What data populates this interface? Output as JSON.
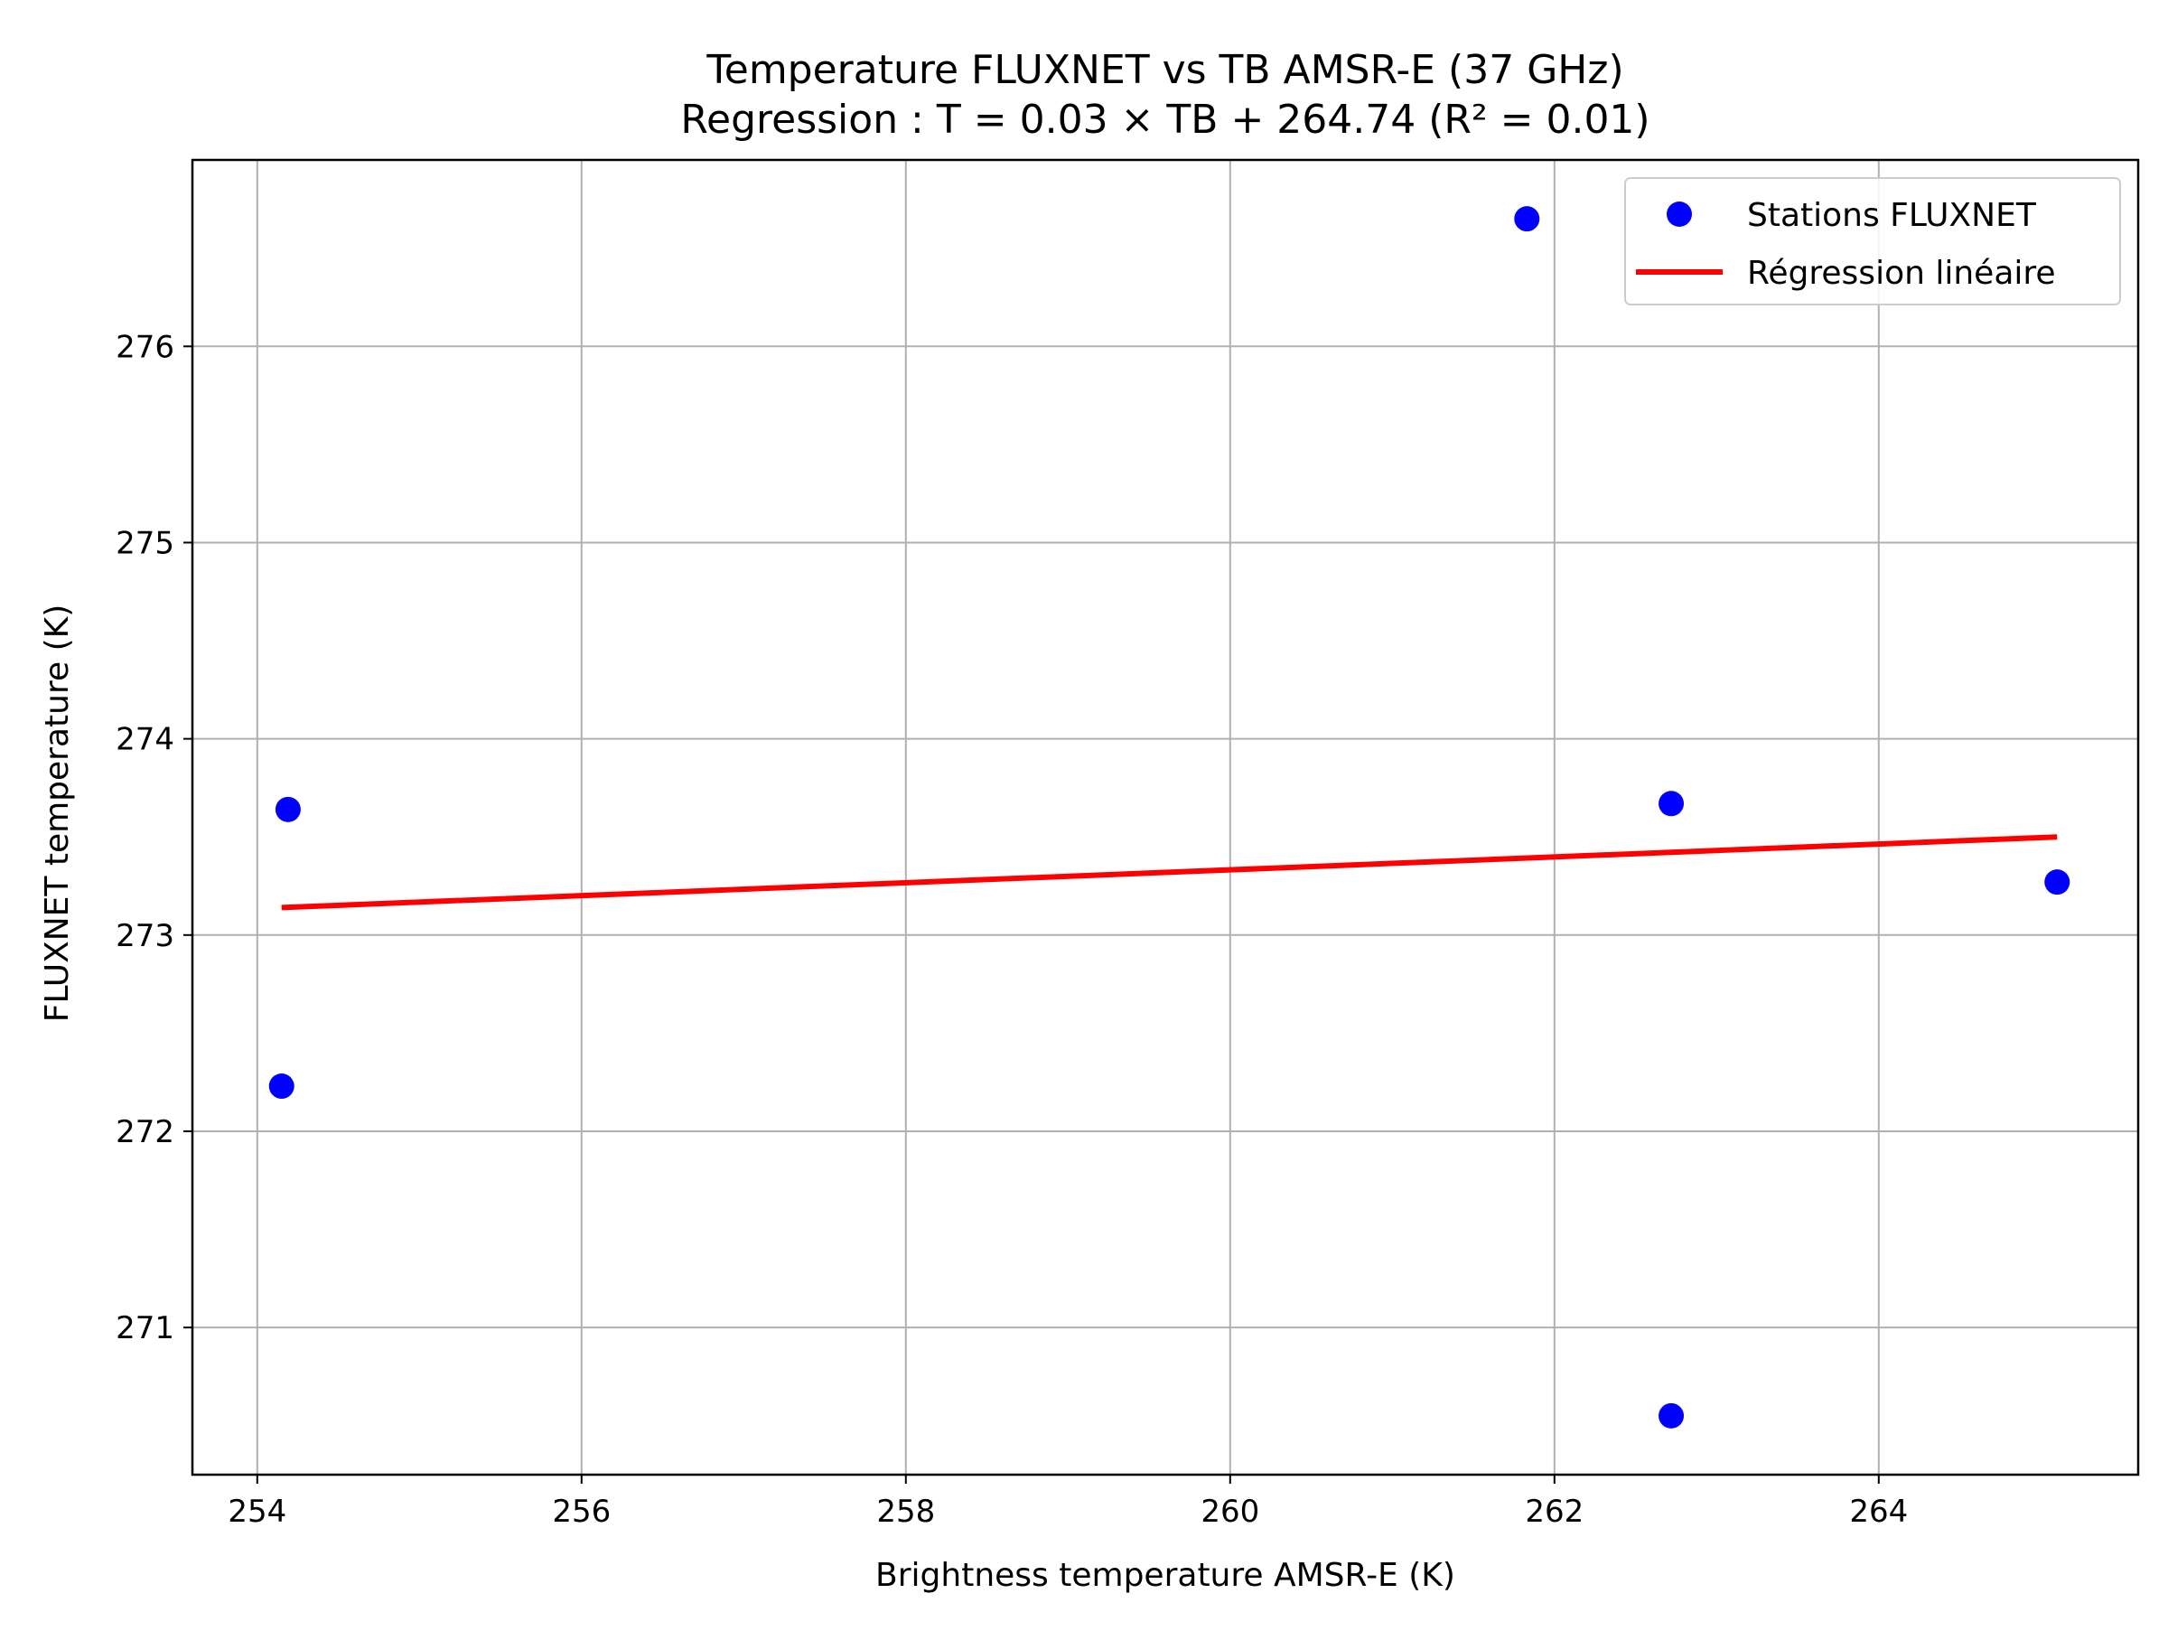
{
  "chart_data": {
    "type": "scatter",
    "title": "Temperature FLUXNET vs TB AMSR-E (37 GHz)",
    "subtitle": "Regression : T = 0.03 × TB + 264.74 (R² = 0.01)",
    "xlabel": "Brightness temperature AMSR-E (K)",
    "ylabel": "FLUXNET temperature (K)",
    "xlim": [
      253.6,
      265.6
    ],
    "ylim": [
      270.25,
      276.95
    ],
    "xticks": [
      254,
      256,
      258,
      260,
      262,
      264
    ],
    "yticks": [
      271,
      272,
      273,
      274,
      275,
      276
    ],
    "grid": true,
    "legend_position": "top-right",
    "series": [
      {
        "name": "Stations FLUXNET",
        "kind": "scatter",
        "color": "#0000ff",
        "points": [
          {
            "x": 254.19,
            "y": 273.64
          },
          {
            "x": 254.15,
            "y": 272.23
          },
          {
            "x": 261.83,
            "y": 276.65
          },
          {
            "x": 262.72,
            "y": 273.67
          },
          {
            "x": 262.72,
            "y": 270.55
          },
          {
            "x": 265.1,
            "y": 273.27
          }
        ]
      },
      {
        "name": "Régression linéaire",
        "kind": "line",
        "color": "#ff0000",
        "points": [
          {
            "x": 254.15,
            "y": 273.14
          },
          {
            "x": 265.1,
            "y": 273.5
          }
        ]
      }
    ]
  }
}
